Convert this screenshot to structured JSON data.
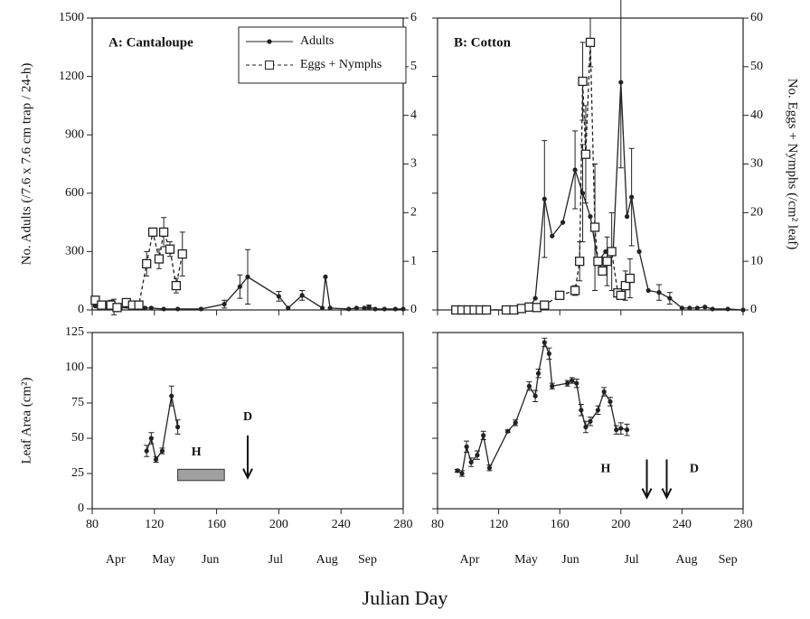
{
  "x_label": "Julian Day",
  "chart_data": [
    {
      "type": "line",
      "title": "A: Cantaloupe",
      "ylabel": "No. Adults (/7.6 x 7.6 cm trap / 24-h)",
      "xlim": [
        80,
        280
      ],
      "xticks": [
        80,
        120,
        160,
        200,
        240,
        280
      ],
      "xtick_labels": false,
      "ylim": [
        0,
        1500
      ],
      "yticks": [
        0,
        300,
        600,
        900,
        1200,
        1500
      ],
      "y2lim": [
        0,
        6
      ],
      "y2ticks": [
        0,
        1,
        2,
        3,
        4,
        5,
        6
      ],
      "legend": "top-center",
      "series": [
        {
          "name": "Adults",
          "color": "#222222",
          "marker": "dot",
          "dash": false,
          "x": [
            82,
            86,
            90,
            94,
            98,
            102,
            106,
            110,
            114,
            118,
            126,
            135,
            150,
            165,
            175,
            180,
            200,
            206,
            215,
            228,
            230,
            233,
            245,
            250,
            255,
            258,
            262,
            268,
            275,
            280
          ],
          "values": [
            20,
            15,
            10,
            15,
            5,
            20,
            20,
            15,
            10,
            10,
            5,
            5,
            5,
            30,
            120,
            170,
            70,
            10,
            75,
            10,
            170,
            10,
            5,
            10,
            10,
            15,
            5,
            5,
            5,
            5
          ],
          "errors": [
            null,
            null,
            null,
            40,
            null,
            10,
            null,
            null,
            null,
            null,
            null,
            null,
            null,
            20,
            60,
            140,
            25,
            null,
            25,
            null,
            null,
            null,
            null,
            null,
            null,
            10,
            null,
            null,
            null,
            null
          ]
        },
        {
          "name": "Eggs + Nymphs",
          "color": "#222222",
          "marker": "square",
          "dash": true,
          "axis": "y2",
          "x": [
            82,
            86,
            92,
            96,
            102,
            106,
            110,
            115,
            119,
            123,
            126,
            130,
            134,
            138
          ],
          "values": [
            0.2,
            0.1,
            0.1,
            0.05,
            0.15,
            0.1,
            0.1,
            0.95,
            1.6,
            1.05,
            1.6,
            1.25,
            0.5,
            1.15
          ],
          "errors": [
            null,
            null,
            0.1,
            null,
            null,
            null,
            null,
            0.25,
            null,
            0.2,
            0.3,
            0.15,
            0.15,
            0.45
          ]
        }
      ]
    },
    {
      "type": "line",
      "title": "B: Cotton",
      "y2label": "No. Eggs + Nymphs (/cm² leaf)",
      "xlim": [
        80,
        280
      ],
      "xticks": [
        80,
        120,
        160,
        200,
        240,
        280
      ],
      "xtick_labels": false,
      "ylim": [
        0,
        1500
      ],
      "yticks": [
        0,
        300,
        600,
        900,
        1200,
        1500
      ],
      "ytick_labels": false,
      "y2lim": [
        0,
        60
      ],
      "y2ticks": [
        0,
        10,
        20,
        30,
        40,
        50,
        60
      ],
      "series": [
        {
          "color": "#222222",
          "marker": "dot",
          "dash": false,
          "x": [
            92,
            96,
            100,
            104,
            108,
            112,
            125,
            130,
            135,
            140,
            144,
            150,
            155,
            162,
            170,
            175,
            180,
            185,
            190,
            195,
            200,
            204,
            207,
            212,
            218,
            225,
            232,
            240,
            245,
            250,
            255,
            260,
            270,
            280
          ],
          "values": [
            0,
            0,
            0,
            0,
            0,
            0,
            0,
            0,
            0,
            10,
            60,
            570,
            380,
            450,
            720,
            600,
            480,
            250,
            300,
            310,
            1170,
            480,
            580,
            300,
            100,
            90,
            60,
            10,
            10,
            10,
            15,
            5,
            5,
            0
          ],
          "errors": [
            null,
            null,
            null,
            null,
            null,
            null,
            null,
            null,
            null,
            null,
            null,
            300,
            null,
            null,
            200,
            250,
            null,
            null,
            null,
            null,
            440,
            null,
            250,
            null,
            null,
            40,
            30,
            null,
            null,
            null,
            null,
            null,
            null,
            null
          ]
        },
        {
          "color": "#222222",
          "marker": "square",
          "dash": true,
          "axis": "y2",
          "x": [
            92,
            96,
            100,
            104,
            108,
            112,
            125,
            130,
            135,
            140,
            145,
            150,
            160,
            170,
            173,
            175,
            177,
            180,
            183,
            185,
            188,
            191,
            194,
            198,
            200,
            203,
            206
          ],
          "values": [
            0,
            0,
            0,
            0,
            0,
            0,
            0,
            0,
            0.3,
            0.6,
            0.5,
            1,
            3,
            4,
            10,
            47,
            32,
            55,
            17,
            10,
            8,
            10,
            12,
            3.5,
            3,
            5,
            6.5
          ],
          "errors": [
            null,
            null,
            null,
            null,
            null,
            null,
            null,
            null,
            null,
            null,
            null,
            null,
            null,
            1,
            4,
            8,
            10,
            5,
            13,
            null,
            null,
            5,
            8,
            null,
            null,
            3,
            4
          ]
        }
      ]
    },
    {
      "type": "line",
      "ylabel": "Leaf Area (cm²)",
      "xlim": [
        80,
        280
      ],
      "xticks": [
        80,
        120,
        160,
        200,
        240,
        280
      ],
      "ylim": [
        0,
        125
      ],
      "yticks": [
        0,
        25,
        50,
        75,
        100,
        125
      ],
      "month_ticks": [
        {
          "value": 95,
          "label": "Apr"
        },
        {
          "value": 126,
          "label": "May"
        },
        {
          "value": 156,
          "label": "Jun"
        },
        {
          "value": 198,
          "label": "Jul"
        },
        {
          "value": 231,
          "label": "Aug"
        },
        {
          "value": 257,
          "label": "Sep"
        }
      ],
      "series": [
        {
          "color": "#222222",
          "marker": "dot",
          "dash": false,
          "x": [
            115,
            118,
            121,
            125,
            131,
            135
          ],
          "values": [
            41,
            50,
            35,
            41,
            80,
            58
          ],
          "errors": [
            4,
            4,
            2,
            2,
            7,
            5
          ]
        }
      ],
      "bars": [
        {
          "start": 135,
          "end": 165,
          "low": 20,
          "high": 28,
          "color": "#a0a0a0"
        }
      ],
      "arrows": [
        {
          "x": 180,
          "from": 52,
          "to": 22
        }
      ],
      "annotations": [
        {
          "text": "H",
          "x": 147,
          "y": 40
        },
        {
          "text": "D",
          "x": 180,
          "y": 65
        }
      ]
    },
    {
      "type": "line",
      "xlim": [
        80,
        280
      ],
      "xticks": [
        80,
        120,
        160,
        200,
        240,
        280
      ],
      "ylim": [
        0,
        125
      ],
      "yticks": [
        0,
        25,
        50,
        75,
        100,
        125
      ],
      "ytick_labels": false,
      "month_ticks": [
        {
          "value": 101,
          "label": "Apr"
        },
        {
          "value": 138,
          "label": "May"
        },
        {
          "value": 167,
          "label": "Jun"
        },
        {
          "value": 207,
          "label": "Jul"
        },
        {
          "value": 243,
          "label": "Aug"
        },
        {
          "value": 270,
          "label": "Sep"
        }
      ],
      "series": [
        {
          "color": "#222222",
          "marker": "dot",
          "dash": false,
          "x": [
            93,
            96,
            99,
            102,
            106,
            110,
            114,
            126,
            131,
            140,
            144,
            146,
            150,
            153,
            155,
            165,
            168,
            171,
            174,
            177,
            180,
            185,
            189,
            193,
            197,
            200,
            204
          ],
          "values": [
            27,
            25,
            44,
            33,
            38,
            52,
            29,
            55,
            61,
            87,
            80,
            96,
            118,
            110,
            87,
            89,
            91,
            89,
            70,
            58,
            62,
            70,
            83,
            76,
            56,
            57,
            56
          ],
          "errors": [
            1,
            2,
            4,
            3,
            3,
            3,
            2,
            1,
            2,
            3,
            4,
            3,
            3,
            4,
            2,
            2,
            2,
            3,
            4,
            4,
            3,
            3,
            3,
            3,
            3,
            4,
            4
          ]
        }
      ],
      "arrows": [
        {
          "x": 217,
          "from": 35,
          "to": 8
        },
        {
          "x": 230,
          "from": 35,
          "to": 8
        }
      ],
      "annotations": [
        {
          "text": "H",
          "x": 190,
          "y": 28
        },
        {
          "text": "D",
          "x": 248,
          "y": 28
        }
      ]
    }
  ]
}
